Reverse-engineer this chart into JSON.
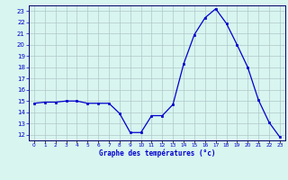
{
  "hours": [
    0,
    1,
    2,
    3,
    4,
    5,
    6,
    7,
    8,
    9,
    10,
    11,
    12,
    13,
    14,
    15,
    16,
    17,
    18,
    19,
    20,
    21,
    22,
    23
  ],
  "temperatures": [
    14.8,
    14.9,
    14.9,
    15.0,
    15.0,
    14.8,
    14.8,
    14.8,
    13.9,
    12.2,
    12.2,
    13.7,
    13.7,
    14.7,
    18.3,
    20.9,
    22.4,
    23.2,
    21.9,
    20.0,
    18.0,
    15.1,
    13.1,
    11.8
  ],
  "xlabel": "Graphe des températures (°c)",
  "line_color": "#0000cc",
  "marker_color": "#0000cc",
  "bg_color": "#d8f5f0",
  "grid_color": "#b0c8c8",
  "text_color": "#0000cc",
  "ylim_min": 11.5,
  "ylim_max": 23.5,
  "yticks": [
    12,
    13,
    14,
    15,
    16,
    17,
    18,
    19,
    20,
    21,
    22,
    23
  ],
  "xtick_labels": [
    "0",
    "1",
    "2",
    "3",
    "4",
    "5",
    "6",
    "7",
    "8",
    "9",
    "10",
    "11",
    "12",
    "13",
    "14",
    "15",
    "16",
    "17",
    "18",
    "19",
    "20",
    "21",
    "22",
    "23"
  ]
}
